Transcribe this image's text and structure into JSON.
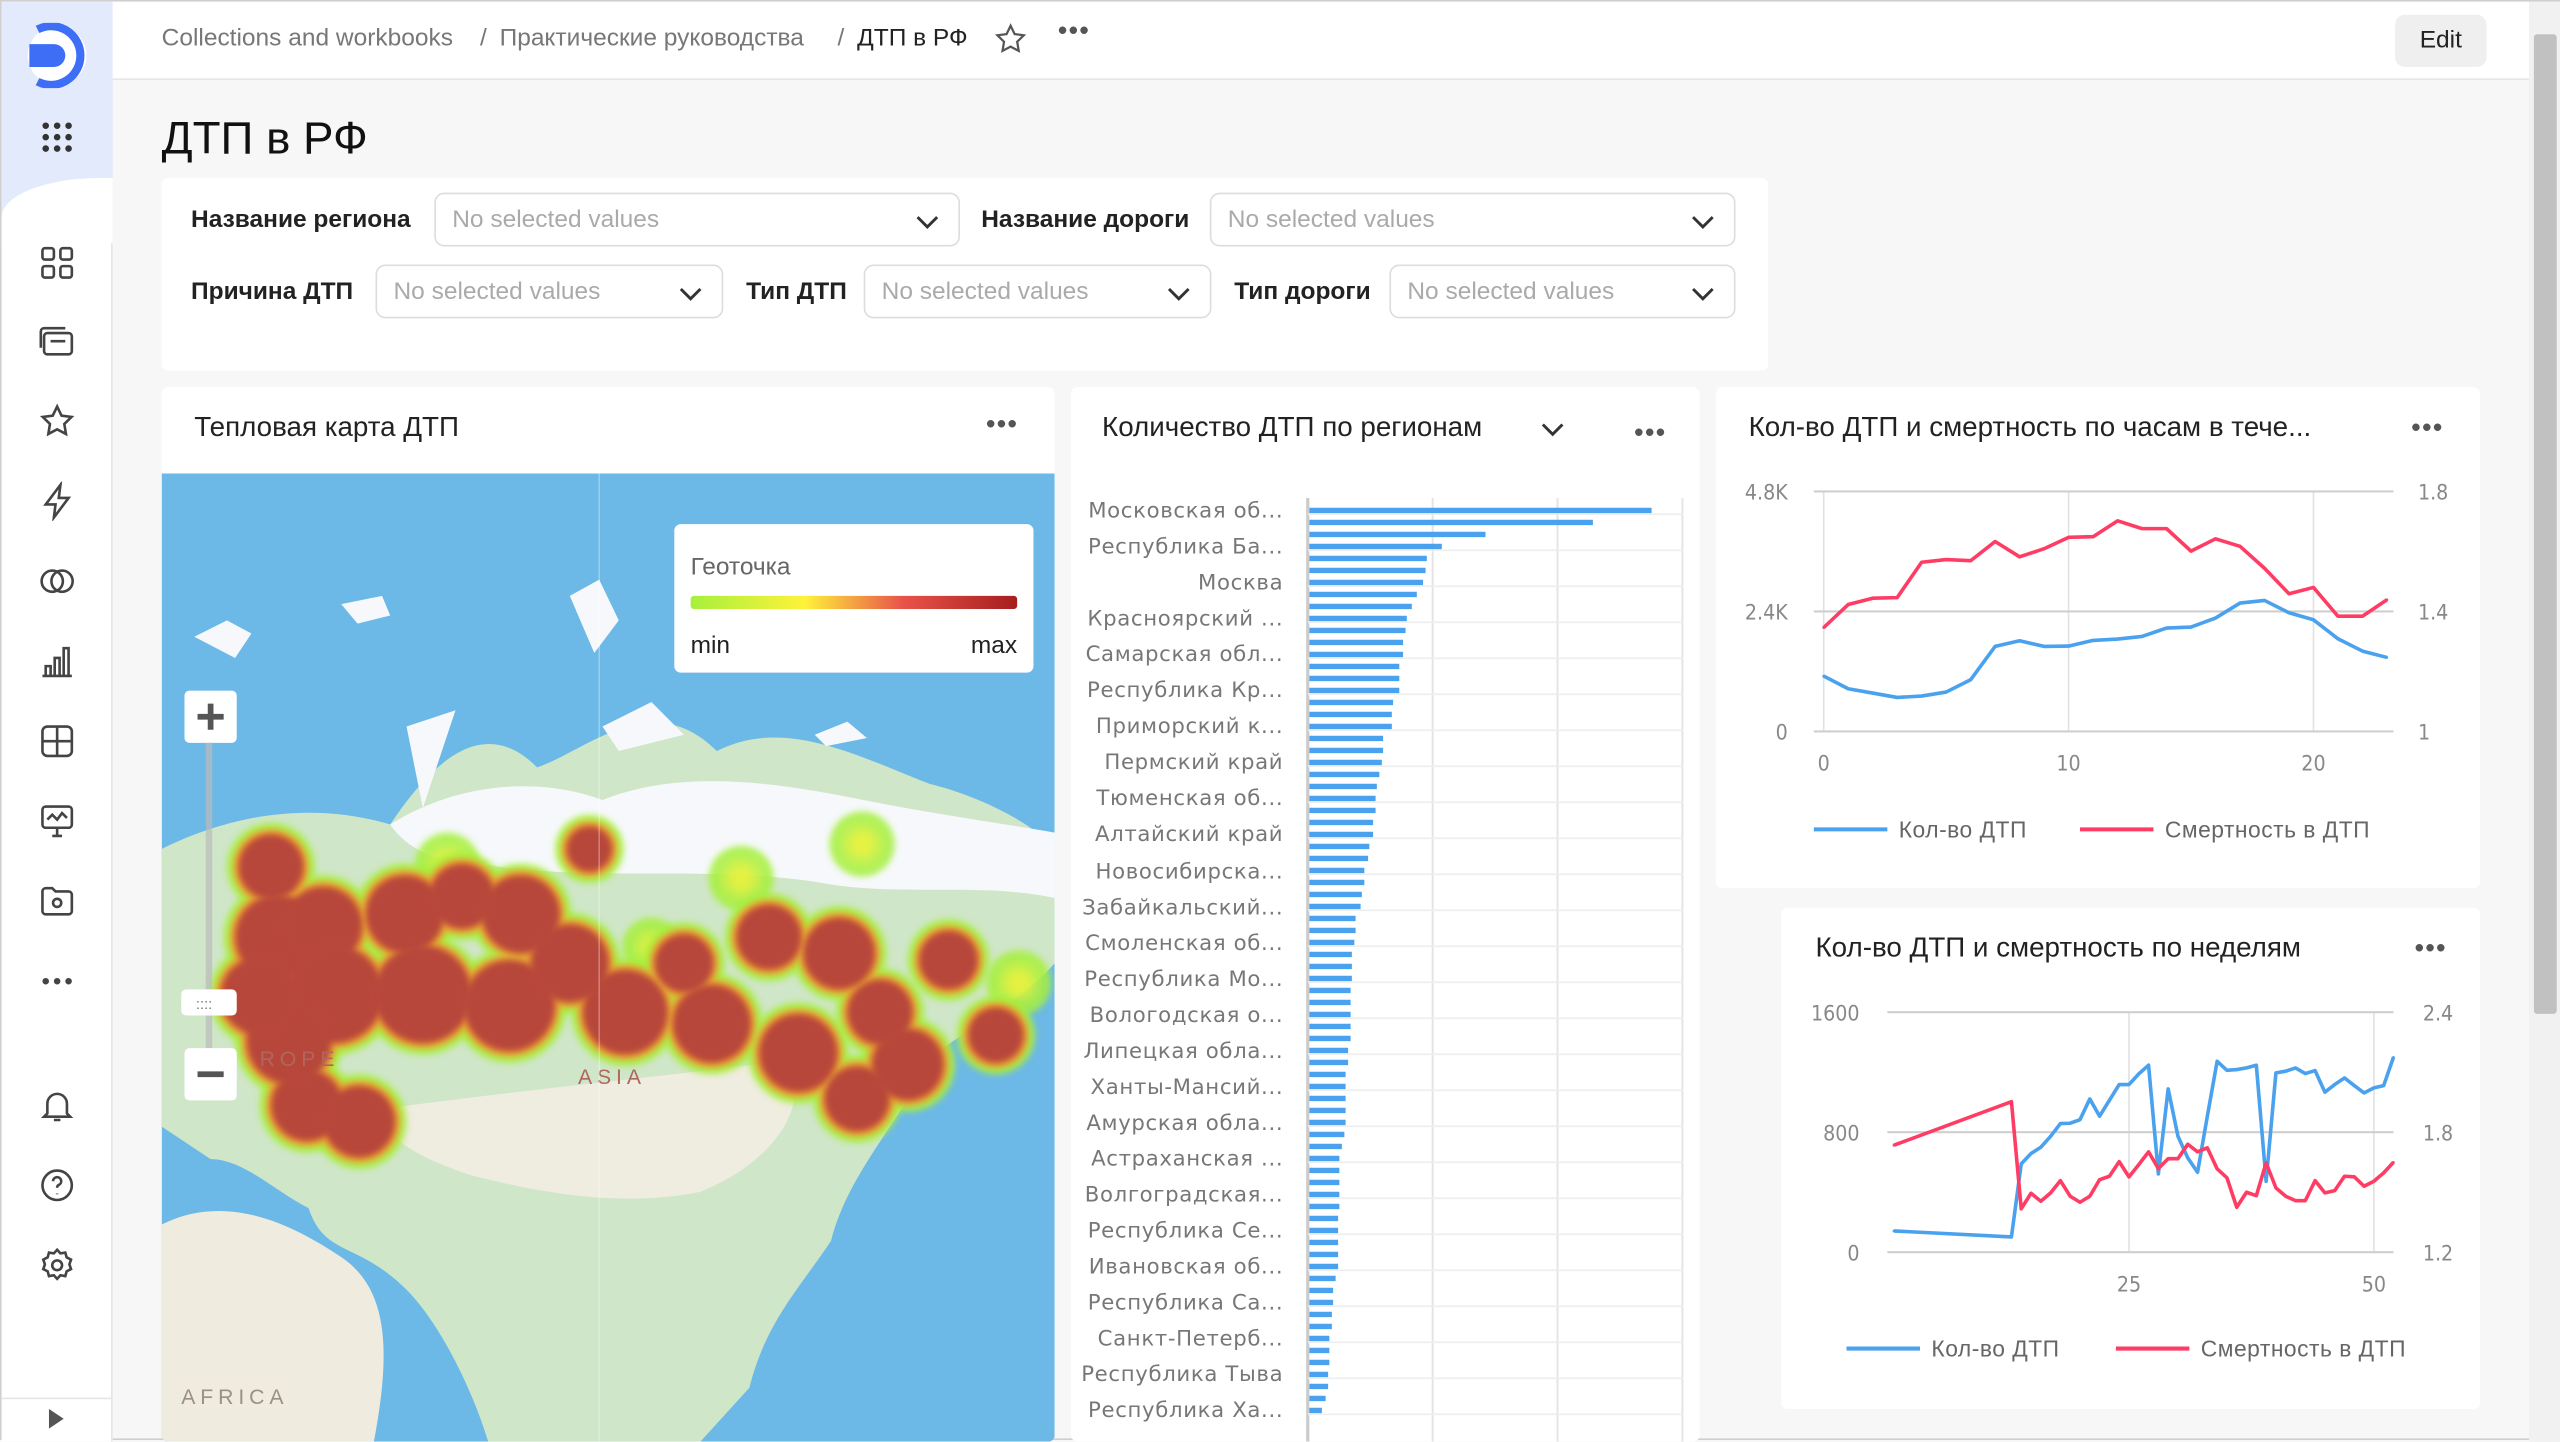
{
  "sidebar": {
    "icons": [
      "logo-icon",
      "apps-grid-icon",
      "dashboard-icon",
      "collections-icon",
      "favorites-star-icon",
      "lightning-icon",
      "datasets-rings-icon",
      "charts-bar-icon",
      "grid-table-icon",
      "monitor-icon",
      "folder-icon",
      "more-icon",
      "notifications-bell-icon",
      "help-icon",
      "settings-gear-icon",
      "expand-arrow-icon"
    ]
  },
  "header": {
    "breadcrumbs": [
      "Collections and workbooks",
      "Практические руководства",
      "ДТП в РФ"
    ],
    "separator": "/",
    "edit_label": "Edit"
  },
  "page": {
    "title": "ДТП в РФ"
  },
  "filters": [
    {
      "label": "Название региона",
      "placeholder": "No selected values"
    },
    {
      "label": "Название дороги",
      "placeholder": "No selected values"
    },
    {
      "label": "Причина ДТП",
      "placeholder": "No selected values"
    },
    {
      "label": "Тип ДТП",
      "placeholder": "No selected values"
    },
    {
      "label": "Тип дороги",
      "placeholder": "No selected values"
    }
  ],
  "map_widget": {
    "title": "Тепловая карта ДТП",
    "legend_title": "Геоточка",
    "legend_min": "min",
    "legend_max": "max",
    "labels": [
      "ROPE",
      "ASIA",
      "AFRICA"
    ],
    "colors": {
      "min": "#a6f03c",
      "mid": "#fff23a",
      "max": "#a51e1e"
    }
  },
  "colors": {
    "blue": "#4aa1ee",
    "red": "#ff3d64"
  },
  "chart_data": [
    {
      "type": "bar",
      "title": "Количество ДТП по регионам",
      "orientation": "horizontal",
      "tick_labels": [
        "Московская об...",
        "Республика Ба...",
        "Москва",
        "Красноярский ...",
        "Самарская обл...",
        "Республика Кр...",
        "Приморский к...",
        "Пермский край",
        "Тюменская об...",
        "Алтайский край",
        "Новосибирска...",
        "Забайкальский...",
        "Смоленская об...",
        "Республика Мо...",
        "Вологодская о...",
        "Липецкая обла...",
        "Ханты-Мансий...",
        "Амурская обла...",
        "Астраханская ...",
        "Волгоградская...",
        "Республика Се...",
        "Ивановская об...",
        "Республика Са...",
        "Санкт-Петерб...",
        "Республика Тыва",
        "Республика Ха..."
      ],
      "values": [
        2.74,
        2.27,
        1.41,
        1.06,
        0.94,
        0.93,
        0.91,
        0.86,
        0.82,
        0.78,
        0.77,
        0.75,
        0.75,
        0.72,
        0.72,
        0.72,
        0.67,
        0.66,
        0.66,
        0.59,
        0.59,
        0.58,
        0.56,
        0.54,
        0.53,
        0.53,
        0.51,
        0.51,
        0.48,
        0.47,
        0.44,
        0.44,
        0.42,
        0.41,
        0.37,
        0.37,
        0.36,
        0.34,
        0.34,
        0.34,
        0.33,
        0.33,
        0.33,
        0.33,
        0.33,
        0.31,
        0.31,
        0.29,
        0.29,
        0.29,
        0.29,
        0.29,
        0.28,
        0.26,
        0.24,
        0.24,
        0.24,
        0.24,
        0.24,
        0.23,
        0.23,
        0.23,
        0.23,
        0.23,
        0.21,
        0.19,
        0.19,
        0.18,
        0.18,
        0.16,
        0.16,
        0.16,
        0.15,
        0.15,
        0.13,
        0.1
      ],
      "xlim": [
        0,
        3
      ],
      "grid": true
    },
    {
      "type": "line",
      "title": "Кол-во ДТП и смертность по часам в тече...",
      "x": [
        0,
        1,
        2,
        3,
        4,
        5,
        6,
        7,
        8,
        9,
        10,
        11,
        12,
        13,
        14,
        15,
        16,
        17,
        18,
        19,
        20,
        21,
        22,
        23
      ],
      "series": [
        {
          "name": "Кол-во ДТП",
          "axis": "left",
          "values": [
            1107,
            853,
            767,
            680,
            707,
            787,
            1033,
            1700,
            1813,
            1700,
            1707,
            1820,
            1847,
            1900,
            2067,
            2087,
            2267,
            2567,
            2620,
            2373,
            2233,
            1853,
            1607,
            1480
          ]
        },
        {
          "name": "Смертность в ДТП",
          "axis": "right",
          "values": [
            1.346,
            1.423,
            1.444,
            1.446,
            1.564,
            1.573,
            1.569,
            1.633,
            1.582,
            1.609,
            1.647,
            1.649,
            1.702,
            1.676,
            1.676,
            1.601,
            1.642,
            1.617,
            1.544,
            1.459,
            1.48,
            1.384,
            1.384,
            1.439
          ]
        }
      ],
      "xticks": [
        "0",
        "10",
        "20"
      ],
      "yticks_left": [
        "0",
        "2.4K",
        "4.8K"
      ],
      "yticks_right": [
        "1",
        "1.4",
        "1.8"
      ],
      "ylim_left": [
        0,
        4800
      ],
      "ylim_right": [
        1,
        1.8
      ],
      "xlim": [
        0,
        23
      ],
      "legend": "bottom"
    },
    {
      "type": "line",
      "title": "Кол-во ДТП и смертность по неделям",
      "x": [
        1,
        13,
        14,
        15,
        16,
        17,
        18,
        19,
        20,
        21,
        22,
        23,
        24,
        25,
        26,
        27,
        28,
        29,
        30,
        31,
        32,
        33,
        34,
        35,
        36,
        37,
        38,
        39,
        40,
        41,
        42,
        43,
        44,
        45,
        46,
        47,
        48,
        49,
        50,
        51,
        52
      ],
      "series": [
        {
          "name": "Кол-во ДТП",
          "axis": "left",
          "values": [
            142,
            102,
            589,
            658,
            700,
            773,
            858,
            860,
            884,
            1022,
            907,
            1013,
            1118,
            1118,
            1189,
            1247,
            522,
            1089,
            773,
            629,
            533,
            907,
            1273,
            1213,
            1218,
            1229,
            1247,
            473,
            1196,
            1207,
            1229,
            1191,
            1211,
            1067,
            1118,
            1162,
            1111,
            1062,
            1096,
            1111,
            1300
          ]
        },
        {
          "name": "Смертность в ДТП",
          "axis": "right",
          "values": [
            1.735,
            1.953,
            1.417,
            1.495,
            1.455,
            1.497,
            1.558,
            1.48,
            1.45,
            1.48,
            1.563,
            1.58,
            1.653,
            1.577,
            1.638,
            1.702,
            1.618,
            1.668,
            1.668,
            1.74,
            1.702,
            1.722,
            1.617,
            1.572,
            1.425,
            1.5,
            1.483,
            1.647,
            1.522,
            1.48,
            1.458,
            1.458,
            1.558,
            1.497,
            1.508,
            1.58,
            1.577,
            1.53,
            1.555,
            1.597,
            1.65
          ]
        }
      ],
      "xticks": [
        "25",
        "50"
      ],
      "yticks_left": [
        "0",
        "800",
        "1600"
      ],
      "yticks_right": [
        "1.2",
        "1.8",
        "2.4"
      ],
      "ylim_left": [
        0,
        1600
      ],
      "ylim_right": [
        1.2,
        2.4
      ],
      "legend": "bottom"
    }
  ]
}
